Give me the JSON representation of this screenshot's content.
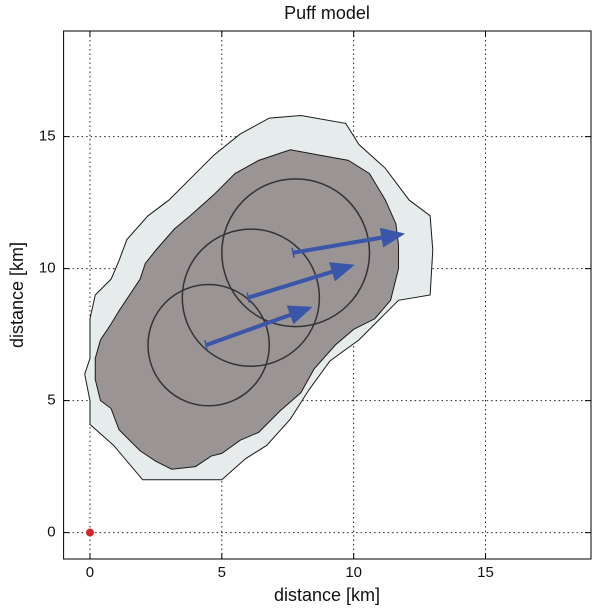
{
  "chart_data": {
    "type": "puff",
    "title": "Puff model",
    "xlabel": "distance [km]",
    "ylabel": "distance [km]",
    "xlim": [
      -1,
      19
    ],
    "ylim": [
      -1,
      19
    ],
    "xticks": [
      0,
      5,
      10,
      15
    ],
    "yticks": [
      0,
      5,
      10,
      15
    ],
    "grid": true,
    "contours": [
      {
        "color": "#e6ecec",
        "x": [
          2.0,
          5.0,
          5.9,
          6.7,
          7.6,
          8.3,
          9.1,
          10.2,
          11.0,
          11.7,
          12.9,
          13.0,
          12.9,
          12.1,
          11.2,
          10.2,
          9.7,
          8.0,
          6.8,
          5.7,
          4.7,
          4.0,
          3.0,
          2.2,
          1.4,
          1.1,
          0.8,
          0.2,
          0,
          0,
          -0.2,
          0,
          0,
          0.9
        ],
        "y": [
          2.0,
          2.0,
          2.8,
          3.3,
          4.3,
          5.4,
          6.5,
          7.3,
          8.1,
          8.8,
          9.0,
          10.7,
          12.0,
          12.6,
          13.8,
          14.7,
          15.5,
          15.8,
          15.7,
          15.1,
          14.3,
          13.6,
          12.6,
          12.0,
          11.1,
          10.3,
          9.6,
          9.0,
          8.1,
          6.6,
          6.0,
          5.0,
          4.1,
          3.3
        ]
      },
      {
        "color": "#9a9495",
        "x": [
          3.1,
          4.0,
          4.6,
          5.0,
          5.7,
          6.4,
          7.2,
          8.0,
          8.5,
          9.3,
          10.0,
          10.8,
          11.4,
          11.7,
          11.7,
          11.6,
          11.2,
          10.6,
          9.8,
          8.7,
          7.6,
          6.4,
          5.5,
          4.7,
          3.8,
          3.2,
          2.5,
          2.1,
          1.9,
          1.5,
          1.1,
          0.8,
          0.4,
          0.2,
          0.2,
          0.4,
          0.8,
          1.1,
          1.9,
          2.5
        ],
        "y": [
          2.4,
          2.5,
          2.9,
          3.0,
          3.5,
          3.8,
          4.6,
          5.3,
          6.2,
          7.1,
          7.7,
          8.1,
          8.8,
          10.0,
          10.9,
          11.7,
          12.6,
          13.6,
          14.1,
          14.3,
          14.5,
          14.1,
          13.6,
          12.8,
          12.0,
          11.5,
          10.7,
          10.2,
          9.6,
          9.0,
          8.4,
          7.9,
          7.3,
          6.6,
          5.8,
          5.0,
          4.7,
          3.9,
          3.1,
          2.7
        ]
      }
    ],
    "puffs": [
      {
        "x": 4.5,
        "y": 7.1,
        "r": 2.3
      },
      {
        "x": 6.1,
        "y": 8.9,
        "r": 2.6
      },
      {
        "x": 7.8,
        "y": 10.6,
        "r": 2.8
      }
    ],
    "arrow_color": "#3a56a8",
    "arrows": [
      {
        "x0": 4.4,
        "y0": 7.1,
        "x1": 8.3,
        "y1": 8.5
      },
      {
        "x0": 6.0,
        "y0": 8.9,
        "x1": 9.9,
        "y1": 10.1
      },
      {
        "x0": 7.7,
        "y0": 10.6,
        "x1": 11.8,
        "y1": 11.3
      }
    ],
    "source": {
      "x": 0,
      "y": 0,
      "color": "#d62728"
    }
  }
}
